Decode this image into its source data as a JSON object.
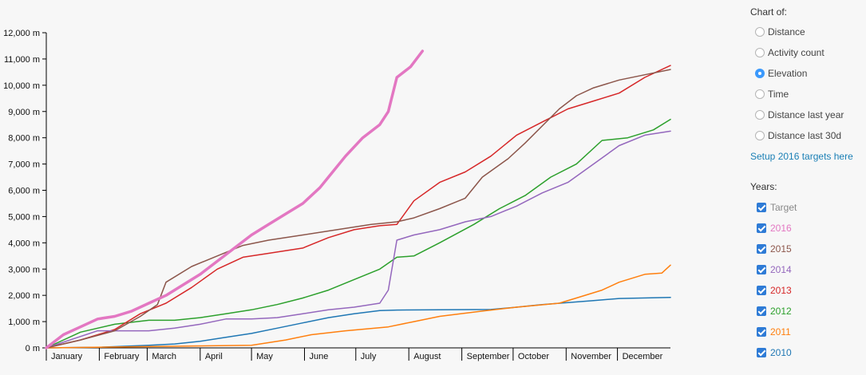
{
  "chart_data": {
    "type": "line",
    "ylabel_unit": " m",
    "ylim": [
      0,
      12000
    ],
    "y_ticks": [
      0,
      1000,
      2000,
      3000,
      4000,
      5000,
      6000,
      7000,
      8000,
      9000,
      10000,
      11000,
      12000
    ],
    "y_tick_labels": [
      "0 m",
      "1,000 m",
      "2,000 m",
      "3,000 m",
      "4,000 m",
      "5,000 m",
      "6,000 m",
      "7,000 m",
      "8,000 m",
      "9,000 m",
      "10,000 m",
      "11,000 m",
      "12,000 m"
    ],
    "x_months": [
      "January",
      "February",
      "March",
      "April",
      "May",
      "June",
      "July",
      "August",
      "September",
      "October",
      "November",
      "December"
    ],
    "xlim_days": [
      0,
      365
    ],
    "grid": false,
    "series": [
      {
        "name": "2010",
        "color": "#1f77b4",
        "width": 1.5,
        "x": [
          0,
          30,
          60,
          75,
          90,
          105,
          120,
          135,
          150,
          165,
          180,
          195,
          205,
          260,
          275,
          290,
          320,
          335,
          365
        ],
        "y": [
          0,
          20,
          100,
          150,
          250,
          400,
          550,
          750,
          950,
          1150,
          1300,
          1420,
          1440,
          1460,
          1550,
          1650,
          1800,
          1880,
          1920
        ]
      },
      {
        "name": "2011",
        "color": "#ff7f0e",
        "width": 1.5,
        "x": [
          0,
          60,
          120,
          140,
          155,
          175,
          200,
          215,
          230,
          255,
          275,
          300,
          310,
          325,
          335,
          350,
          360,
          365
        ],
        "y": [
          0,
          50,
          100,
          300,
          500,
          650,
          800,
          1000,
          1200,
          1400,
          1550,
          1700,
          1900,
          2200,
          2500,
          2800,
          2850,
          3150
        ]
      },
      {
        "name": "2012",
        "color": "#2ca02c",
        "width": 1.5,
        "x": [
          0,
          20,
          40,
          60,
          75,
          90,
          105,
          120,
          135,
          150,
          165,
          180,
          195,
          205,
          215,
          230,
          250,
          265,
          280,
          295,
          310,
          325,
          340,
          355,
          365
        ],
        "y": [
          0,
          600,
          900,
          1050,
          1050,
          1150,
          1300,
          1450,
          1650,
          1900,
          2200,
          2600,
          3000,
          3450,
          3500,
          4000,
          4700,
          5300,
          5800,
          6500,
          7000,
          7900,
          8000,
          8300,
          8700
        ]
      },
      {
        "name": "2013",
        "color": "#d62728",
        "width": 1.5,
        "x": [
          0,
          20,
          40,
          55,
          70,
          85,
          100,
          115,
          130,
          150,
          165,
          180,
          195,
          205,
          215,
          230,
          245,
          260,
          275,
          290,
          305,
          320,
          335,
          350,
          365
        ],
        "y": [
          0,
          300,
          700,
          1300,
          1700,
          2300,
          3000,
          3450,
          3600,
          3800,
          4200,
          4500,
          4650,
          4700,
          5600,
          6300,
          6700,
          7300,
          8100,
          8600,
          9100,
          9400,
          9700,
          10300,
          10750
        ]
      },
      {
        "name": "2014",
        "color": "#9467bd",
        "width": 1.5,
        "x": [
          0,
          30,
          60,
          75,
          90,
          105,
          120,
          135,
          150,
          165,
          180,
          195,
          200,
          205,
          215,
          230,
          245,
          260,
          275,
          290,
          305,
          320,
          335,
          350,
          365
        ],
        "y": [
          0,
          650,
          650,
          750,
          900,
          1100,
          1100,
          1150,
          1300,
          1450,
          1550,
          1700,
          2200,
          4100,
          4300,
          4500,
          4800,
          5000,
          5400,
          5900,
          6300,
          7000,
          7700,
          8100,
          8250
        ]
      },
      {
        "name": "2015",
        "color": "#8c564b",
        "width": 1.5,
        "x": [
          0,
          20,
          40,
          55,
          65,
          70,
          85,
          100,
          115,
          130,
          150,
          170,
          190,
          205,
          215,
          230,
          245,
          255,
          270,
          280,
          300,
          310,
          320,
          335,
          350,
          365
        ],
        "y": [
          0,
          300,
          650,
          1200,
          1650,
          2500,
          3100,
          3500,
          3900,
          4100,
          4300,
          4500,
          4700,
          4800,
          4950,
          5300,
          5700,
          6500,
          7200,
          7800,
          9100,
          9600,
          9900,
          10200,
          10400,
          10600
        ]
      },
      {
        "name": "2016",
        "color": "#e377c2",
        "width": 3.5,
        "x": [
          0,
          10,
          20,
          30,
          40,
          50,
          60,
          70,
          80,
          90,
          100,
          110,
          120,
          130,
          140,
          150,
          160,
          165,
          175,
          185,
          195,
          200,
          205,
          213,
          220
        ],
        "y": [
          0,
          500,
          800,
          1100,
          1200,
          1400,
          1700,
          2000,
          2400,
          2800,
          3300,
          3800,
          4300,
          4700,
          5100,
          5500,
          6100,
          6500,
          7300,
          8000,
          8500,
          9000,
          10300,
          10700,
          11300
        ]
      }
    ]
  },
  "sidebar": {
    "chart_heading": "Chart of:",
    "options": [
      "Distance",
      "Activity count",
      "Elevation",
      "Time",
      "Distance last year",
      "Distance last 30d"
    ],
    "selected": "Elevation",
    "setup_link": "Setup 2016 targets here",
    "years_heading": "Years:",
    "years": [
      {
        "label": "Target",
        "color": "#888888"
      },
      {
        "label": "2016",
        "color": "#e377c2"
      },
      {
        "label": "2015",
        "color": "#8c564b"
      },
      {
        "label": "2014",
        "color": "#9467bd"
      },
      {
        "label": "2013",
        "color": "#d62728"
      },
      {
        "label": "2012",
        "color": "#2ca02c"
      },
      {
        "label": "2011",
        "color": "#ff7f0e"
      },
      {
        "label": "2010",
        "color": "#1f77b4"
      }
    ]
  }
}
